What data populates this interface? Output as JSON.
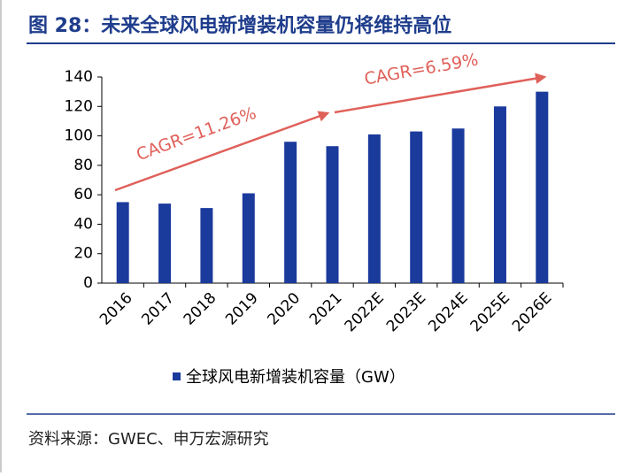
{
  "chart_data": {
    "type": "bar",
    "title": "图 28：未来全球风电新增装机容量仍将维持高位",
    "categories": [
      "2016",
      "2017",
      "2018",
      "2019",
      "2020",
      "2021",
      "2022E",
      "2023E",
      "2024E",
      "2025E",
      "2026E"
    ],
    "series": [
      {
        "name": "全球风电新增装机容量（GW）",
        "color": "#1a3a9c",
        "values": [
          55,
          54,
          51,
          61,
          96,
          93,
          101,
          103,
          105,
          120,
          130
        ]
      }
    ],
    "ylim": [
      0,
      140
    ],
    "yticks": [
      0,
      20,
      40,
      60,
      80,
      100,
      120,
      140
    ],
    "grid": false,
    "annotations": [
      "CAGR=11.26%",
      "CAGR=6.59%"
    ],
    "source": "资料来源：GWEC、申万宏源研究"
  }
}
